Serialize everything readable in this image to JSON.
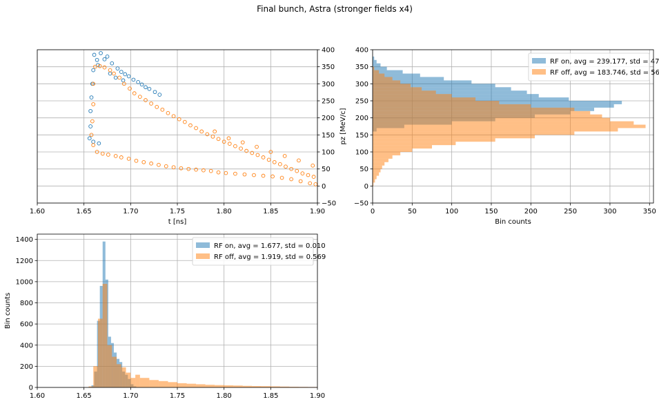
{
  "figure": {
    "title": "Final bunch, Astra (stronger fields x4)"
  },
  "colors": {
    "rf_on": "#1f77b4",
    "rf_off": "#ff7f0e",
    "grid": "#b0b0b0"
  },
  "chart_data": [
    {
      "id": "scatter_t_pz",
      "type": "scatter",
      "xlabel": "t [ns]",
      "ylabel": "pz [MeV/c]",
      "xlim": [
        1.6,
        1.9
      ],
      "ylim": [
        -50,
        400
      ],
      "xticks": [
        "1.60",
        "1.65",
        "1.70",
        "1.75",
        "1.80",
        "1.85",
        "1.90"
      ],
      "yticks": [
        "−50",
        "0",
        "50",
        "100",
        "150",
        "200",
        "250",
        "300",
        "350",
        "400"
      ],
      "y_axis_side": "right",
      "grid": true,
      "series": [
        {
          "color": "#1f77b4",
          "marker": "open-circle",
          "points": [
            [
              1.661,
              385
            ],
            [
              1.668,
              390
            ],
            [
              1.675,
              380
            ],
            [
              1.664,
              370
            ],
            [
              1.672,
              372
            ],
            [
              1.68,
              360
            ],
            [
              1.665,
              355
            ],
            [
              1.686,
              345
            ],
            [
              1.69,
              335
            ],
            [
              1.694,
              328
            ],
            [
              1.698,
              322
            ],
            [
              1.703,
              312
            ],
            [
              1.708,
              305
            ],
            [
              1.712,
              298
            ],
            [
              1.716,
              290
            ],
            [
              1.72,
              285
            ],
            [
              1.726,
              276
            ],
            [
              1.731,
              268
            ],
            [
              1.66,
              340
            ],
            [
              1.659,
              300
            ],
            [
              1.658,
              260
            ],
            [
              1.657,
              220
            ],
            [
              1.657,
              175
            ],
            [
              1.656,
              140
            ],
            [
              1.66,
              130
            ],
            [
              1.666,
              125
            ],
            [
              1.678,
              330
            ],
            [
              1.684,
              318
            ],
            [
              1.692,
              310
            ]
          ]
        },
        {
          "color": "#ff7f0e",
          "marker": "open-circle",
          "points": [
            [
              1.662,
              350
            ],
            [
              1.667,
              352
            ],
            [
              1.672,
              348
            ],
            [
              1.678,
              340
            ],
            [
              1.682,
              330
            ],
            [
              1.688,
              318
            ],
            [
              1.693,
              300
            ],
            [
              1.699,
              286
            ],
            [
              1.704,
              272
            ],
            [
              1.71,
              262
            ],
            [
              1.716,
              252
            ],
            [
              1.722,
              242
            ],
            [
              1.728,
              232
            ],
            [
              1.734,
              224
            ],
            [
              1.74,
              214
            ],
            [
              1.746,
              205
            ],
            [
              1.752,
              196
            ],
            [
              1.758,
              188
            ],
            [
              1.764,
              178
            ],
            [
              1.77,
              170
            ],
            [
              1.776,
              160
            ],
            [
              1.782,
              152
            ],
            [
              1.788,
              145
            ],
            [
              1.794,
              138
            ],
            [
              1.8,
              130
            ],
            [
              1.806,
              124
            ],
            [
              1.812,
              117
            ],
            [
              1.818,
              110
            ],
            [
              1.824,
              103
            ],
            [
              1.83,
              97
            ],
            [
              1.836,
              91
            ],
            [
              1.842,
              84
            ],
            [
              1.848,
              77
            ],
            [
              1.854,
              70
            ],
            [
              1.86,
              64
            ],
            [
              1.866,
              57
            ],
            [
              1.872,
              50
            ],
            [
              1.878,
              44
            ],
            [
              1.884,
              37
            ],
            [
              1.89,
              32
            ],
            [
              1.896,
              27
            ],
            [
              1.66,
              300
            ],
            [
              1.66,
              240
            ],
            [
              1.659,
              190
            ],
            [
              1.658,
              150
            ],
            [
              1.66,
              120
            ],
            [
              1.664,
              100
            ],
            [
              1.67,
              95
            ],
            [
              1.676,
              92
            ],
            [
              1.684,
              88
            ],
            [
              1.69,
              84
            ],
            [
              1.698,
              80
            ],
            [
              1.706,
              74
            ],
            [
              1.714,
              70
            ],
            [
              1.722,
              66
            ],
            [
              1.73,
              62
            ],
            [
              1.738,
              58
            ],
            [
              1.746,
              55
            ],
            [
              1.754,
              52
            ],
            [
              1.762,
              50
            ],
            [
              1.77,
              48
            ],
            [
              1.778,
              46
            ],
            [
              1.786,
              44
            ],
            [
              1.794,
              40
            ],
            [
              1.802,
              38
            ],
            [
              1.812,
              36
            ],
            [
              1.822,
              34
            ],
            [
              1.832,
              32
            ],
            [
              1.842,
              30
            ],
            [
              1.852,
              28
            ],
            [
              1.862,
              24
            ],
            [
              1.872,
              20
            ],
            [
              1.882,
              14
            ],
            [
              1.892,
              8
            ],
            [
              1.898,
              5
            ],
            [
              1.79,
              160
            ],
            [
              1.805,
              140
            ],
            [
              1.82,
              128
            ],
            [
              1.835,
              115
            ],
            [
              1.85,
              100
            ],
            [
              1.865,
              88
            ],
            [
              1.88,
              75
            ],
            [
              1.895,
              60
            ]
          ]
        }
      ]
    },
    {
      "id": "hist_pz",
      "type": "bar",
      "orientation": "horizontal",
      "xlabel": "Bin counts",
      "ylabel": "",
      "xlim": [
        0,
        355
      ],
      "ylim": [
        -50,
        400
      ],
      "xticks": [
        "0",
        "50",
        "100",
        "150",
        "200",
        "250",
        "300",
        "350"
      ],
      "yticks": [
        "−50",
        "0",
        "50",
        "100",
        "150",
        "200",
        "250",
        "300",
        "350",
        "400"
      ],
      "grid": true,
      "legend_position": "top-right",
      "legend": [
        {
          "label": "RF on, avg = 239.177, std = 47.396",
          "color": "#1f77b4"
        },
        {
          "label": "RF off, avg = 183.746, std = 56.976",
          "color": "#ff7f0e"
        }
      ],
      "series": [
        {
          "name": "RF on",
          "color": "#1f77b4",
          "bins": [
            [
              380,
              390,
              0
            ],
            [
              370,
              380,
              2
            ],
            [
              360,
              370,
              5
            ],
            [
              350,
              360,
              10
            ],
            [
              340,
              350,
              18
            ],
            [
              330,
              340,
              38
            ],
            [
              320,
              330,
              60
            ],
            [
              310,
              320,
              90
            ],
            [
              300,
              310,
              125
            ],
            [
              290,
              300,
              155
            ],
            [
              280,
              290,
              175
            ],
            [
              270,
              280,
              195
            ],
            [
              260,
              270,
              210
            ],
            [
              250,
              260,
              248
            ],
            [
              240,
              250,
              315
            ],
            [
              230,
              240,
              305
            ],
            [
              220,
              230,
              280
            ],
            [
              210,
              220,
              250
            ],
            [
              200,
              210,
              205
            ],
            [
              190,
              200,
              155
            ],
            [
              180,
              190,
              100
            ],
            [
              170,
              180,
              40
            ],
            [
              160,
              170,
              5
            ]
          ]
        },
        {
          "name": "RF off",
          "color": "#ff7f0e",
          "bins": [
            [
              340,
              350,
              2
            ],
            [
              330,
              340,
              8
            ],
            [
              320,
              330,
              15
            ],
            [
              310,
              320,
              25
            ],
            [
              300,
              310,
              35
            ],
            [
              290,
              300,
              48
            ],
            [
              280,
              290,
              62
            ],
            [
              270,
              280,
              80
            ],
            [
              260,
              270,
              100
            ],
            [
              250,
              260,
              130
            ],
            [
              240,
              250,
              160
            ],
            [
              230,
              240,
              200
            ],
            [
              220,
              230,
              255
            ],
            [
              210,
              220,
              275
            ],
            [
              200,
              210,
              290
            ],
            [
              190,
              200,
              300
            ],
            [
              180,
              190,
              330
            ],
            [
              170,
              180,
              345
            ],
            [
              160,
              170,
              310
            ],
            [
              150,
              160,
              255
            ],
            [
              140,
              150,
              205
            ],
            [
              130,
              140,
              155
            ],
            [
              120,
              130,
              105
            ],
            [
              110,
              120,
              75
            ],
            [
              100,
              110,
              50
            ],
            [
              90,
              100,
              35
            ],
            [
              80,
              90,
              25
            ],
            [
              70,
              80,
              20
            ],
            [
              60,
              70,
              15
            ],
            [
              50,
              60,
              12
            ],
            [
              40,
              50,
              10
            ],
            [
              30,
              40,
              8
            ],
            [
              20,
              30,
              5
            ],
            [
              10,
              20,
              3
            ],
            [
              0,
              10,
              1
            ]
          ]
        }
      ]
    },
    {
      "id": "hist_t",
      "type": "bar",
      "orientation": "vertical",
      "xlabel": "",
      "ylabel": "Bin counts",
      "xlim": [
        1.6,
        1.9
      ],
      "ylim": [
        0,
        1450
      ],
      "xticks": [
        "1.60",
        "1.65",
        "1.70",
        "1.75",
        "1.80",
        "1.85",
        "1.90"
      ],
      "yticks": [
        "0",
        "200",
        "400",
        "600",
        "800",
        "1000",
        "1200",
        "1400"
      ],
      "grid": true,
      "legend_position": "top-right",
      "legend": [
        {
          "label": "RF on, avg = 1.677, std = 0.010",
          "color": "#1f77b4"
        },
        {
          "label": "RF off, avg = 1.919, std = 0.569",
          "color": "#ff7f0e"
        }
      ],
      "series": [
        {
          "name": "RF on",
          "color": "#1f77b4",
          "bins": [
            [
              1.655,
              1.658,
              5
            ],
            [
              1.658,
              1.661,
              20
            ],
            [
              1.661,
              1.664,
              150
            ],
            [
              1.664,
              1.667,
              630
            ],
            [
              1.667,
              1.67,
              960
            ],
            [
              1.67,
              1.673,
              1380
            ],
            [
              1.673,
              1.676,
              1020
            ],
            [
              1.676,
              1.679,
              480
            ],
            [
              1.679,
              1.682,
              420
            ],
            [
              1.682,
              1.685,
              330
            ],
            [
              1.685,
              1.688,
              270
            ],
            [
              1.688,
              1.691,
              240
            ],
            [
              1.691,
              1.694,
              150
            ],
            [
              1.694,
              1.697,
              120
            ],
            [
              1.697,
              1.7,
              80
            ],
            [
              1.7,
              1.703,
              30
            ],
            [
              1.703,
              1.706,
              10
            ]
          ]
        },
        {
          "name": "RF off",
          "color": "#ff7f0e",
          "bins": [
            [
              1.655,
              1.66,
              10
            ],
            [
              1.66,
              1.665,
              200
            ],
            [
              1.665,
              1.67,
              650
            ],
            [
              1.67,
              1.675,
              980
            ],
            [
              1.675,
              1.68,
              400
            ],
            [
              1.68,
              1.685,
              290
            ],
            [
              1.685,
              1.69,
              220
            ],
            [
              1.69,
              1.695,
              190
            ],
            [
              1.695,
              1.7,
              140
            ],
            [
              1.7,
              1.705,
              90
            ],
            [
              1.705,
              1.71,
              120
            ],
            [
              1.71,
              1.72,
              90
            ],
            [
              1.72,
              1.73,
              70
            ],
            [
              1.73,
              1.74,
              60
            ],
            [
              1.74,
              1.75,
              50
            ],
            [
              1.75,
              1.76,
              40
            ],
            [
              1.76,
              1.77,
              35
            ],
            [
              1.77,
              1.78,
              30
            ],
            [
              1.78,
              1.79,
              25
            ],
            [
              1.79,
              1.8,
              22
            ],
            [
              1.8,
              1.81,
              20
            ],
            [
              1.81,
              1.82,
              18
            ],
            [
              1.82,
              1.83,
              15
            ],
            [
              1.83,
              1.84,
              13
            ],
            [
              1.84,
              1.85,
              12
            ],
            [
              1.85,
              1.86,
              10
            ],
            [
              1.86,
              1.87,
              8
            ],
            [
              1.87,
              1.88,
              6
            ],
            [
              1.88,
              1.89,
              5
            ],
            [
              1.89,
              1.9,
              4
            ]
          ]
        }
      ]
    }
  ]
}
